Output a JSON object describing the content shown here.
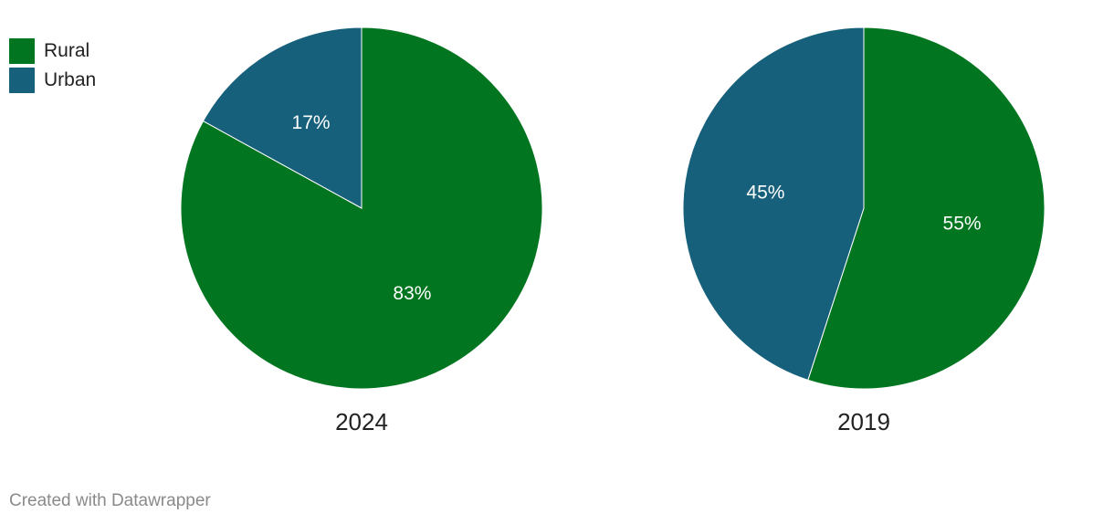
{
  "chart_data": [
    {
      "type": "pie",
      "title": "2024",
      "slices": [
        {
          "label": "Rural",
          "value": 83,
          "display": "83%"
        },
        {
          "label": "Urban",
          "value": 17,
          "display": "17%"
        }
      ]
    },
    {
      "type": "pie",
      "title": "2019",
      "slices": [
        {
          "label": "Rural",
          "value": 55,
          "display": "55%"
        },
        {
          "label": "Urban",
          "value": 45,
          "display": "45%"
        }
      ]
    }
  ],
  "legend": {
    "placement": "top-left",
    "items": [
      {
        "label": "Rural",
        "color": "#01751f"
      },
      {
        "label": "Urban",
        "color": "#17607b"
      }
    ]
  },
  "colors": {
    "Rural": "#01751f",
    "Urban": "#17607b"
  },
  "footer": {
    "credit": "Created with Datawrapper"
  }
}
